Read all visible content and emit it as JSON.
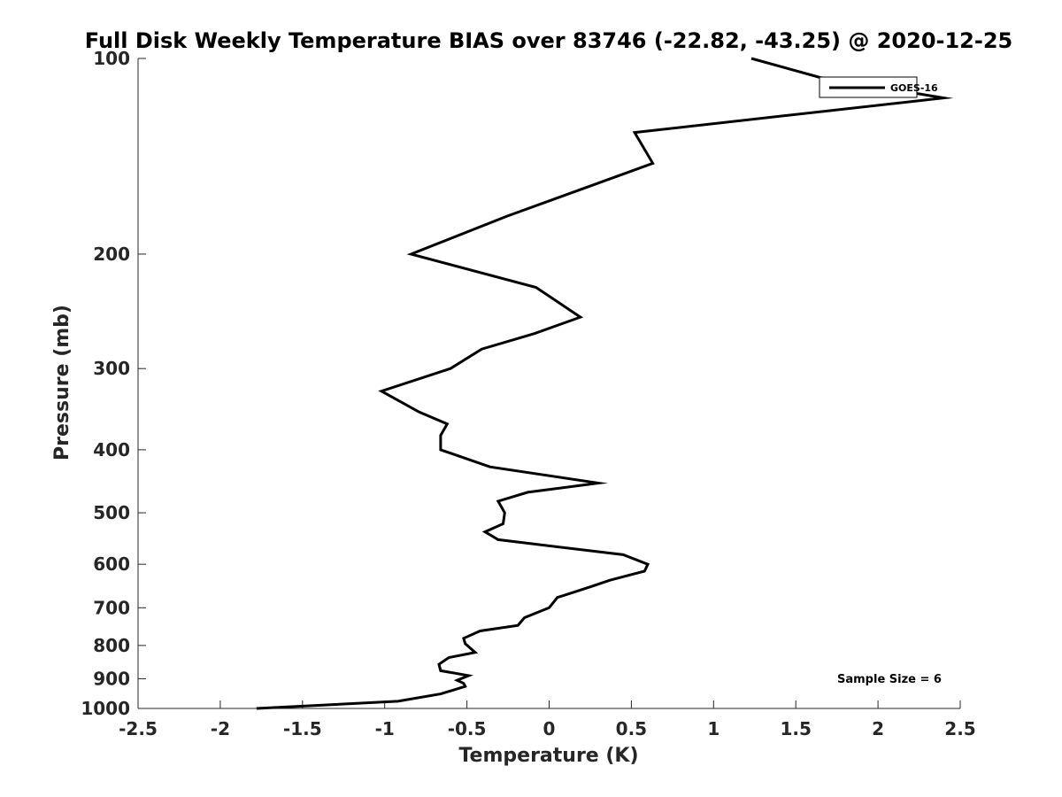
{
  "chart_data": {
    "type": "line",
    "title": "Full Disk Weekly Temperature BIAS over 83746 (-22.82, -43.25) @ 2020-12-25",
    "xlabel": "Temperature (K)",
    "ylabel": "Pressure (mb)",
    "xlim": [
      -2.5,
      2.5
    ],
    "ylim": [
      100,
      1000
    ],
    "yscale": "log",
    "yreverse": true,
    "grid": false,
    "legend_position": "top-right",
    "x_ticks": [
      -2.5,
      -2,
      -1.5,
      -1,
      -0.5,
      0,
      0.5,
      1,
      1.5,
      2,
      2.5
    ],
    "x_tick_labels": [
      "-2.5",
      "-2",
      "-1.5",
      "-1",
      "-0.5",
      "0",
      "0.5",
      "1",
      "1.5",
      "2",
      "2.5"
    ],
    "y_ticks": [
      100,
      200,
      300,
      400,
      500,
      600,
      700,
      800,
      900,
      1000
    ],
    "y_tick_labels": [
      "100",
      "200",
      "300",
      "400",
      "500",
      "600",
      "700",
      "800",
      "900",
      "1000"
    ],
    "series": [
      {
        "name": "GOES-16",
        "color": "#000000",
        "points": [
          [
            1.23,
            100
          ],
          [
            1.65,
            107
          ],
          [
            2.4,
            115
          ],
          [
            0.52,
            130
          ],
          [
            0.63,
            145
          ],
          [
            -0.26,
            175
          ],
          [
            -0.84,
            200
          ],
          [
            -0.08,
            225
          ],
          [
            0.19,
            250
          ],
          [
            -0.09,
            265
          ],
          [
            -0.41,
            280
          ],
          [
            -0.6,
            300
          ],
          [
            -1.02,
            325
          ],
          [
            -0.79,
            350
          ],
          [
            -0.62,
            365
          ],
          [
            -0.66,
            380
          ],
          [
            -0.66,
            400
          ],
          [
            -0.36,
            425
          ],
          [
            0.3,
            450
          ],
          [
            -0.13,
            465
          ],
          [
            -0.31,
            480
          ],
          [
            -0.27,
            500
          ],
          [
            -0.28,
            520
          ],
          [
            -0.39,
            535
          ],
          [
            -0.31,
            550
          ],
          [
            0.45,
            580
          ],
          [
            0.6,
            600
          ],
          [
            0.58,
            615
          ],
          [
            0.37,
            635
          ],
          [
            0.25,
            650
          ],
          [
            0.05,
            675
          ],
          [
            0.0,
            700
          ],
          [
            -0.15,
            725
          ],
          [
            -0.19,
            745
          ],
          [
            -0.42,
            760
          ],
          [
            -0.52,
            780
          ],
          [
            -0.51,
            795
          ],
          [
            -0.45,
            820
          ],
          [
            -0.61,
            835
          ],
          [
            -0.67,
            855
          ],
          [
            -0.66,
            875
          ],
          [
            -0.49,
            890
          ],
          [
            -0.56,
            905
          ],
          [
            -0.52,
            915
          ],
          [
            -0.51,
            925
          ],
          [
            -0.66,
            950
          ],
          [
            -0.92,
            975
          ],
          [
            -1.78,
            1000
          ]
        ]
      }
    ],
    "annotation": "Sample Size = 6"
  }
}
